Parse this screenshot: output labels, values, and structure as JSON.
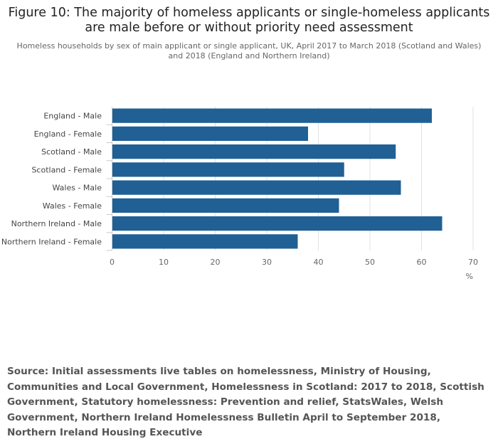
{
  "title": "Figure 10: The majority of homeless applicants or single-homeless applicants are male before or without priority need assessment",
  "subtitle": "Homeless households by sex of main applicant or single applicant, UK, April 2017 to March 2018 (Scotland and Wales) and 2018 (England and Northern Ireland)",
  "source": "Source: Initial assessments live tables on homelessness, Ministry of Housing, Communities and Local Government, Homelessness in Scotland: 2017 to 2018, Scottish Government, Statutory homelessness: Prevention and relief, StatsWales, Welsh Government, Northern Ireland Homelessness Bulletin April to September 2018, Northern Ireland Housing Executive",
  "chart_data": {
    "type": "bar",
    "orientation": "horizontal",
    "categories": [
      "England - Male",
      "England - Female",
      "Scotland - Male",
      "Scotland - Female",
      "Wales - Male",
      "Wales - Female",
      "Northern Ireland - Male",
      "Northern Ireland - Female"
    ],
    "values": [
      62,
      38,
      55,
      45,
      56,
      44,
      64,
      36
    ],
    "xlabel": "%",
    "xlim": [
      0,
      70
    ],
    "xticks": [
      "0",
      "10",
      "20",
      "30",
      "40",
      "50",
      "60",
      "70"
    ],
    "grid": true,
    "bar_color": "#206095"
  }
}
